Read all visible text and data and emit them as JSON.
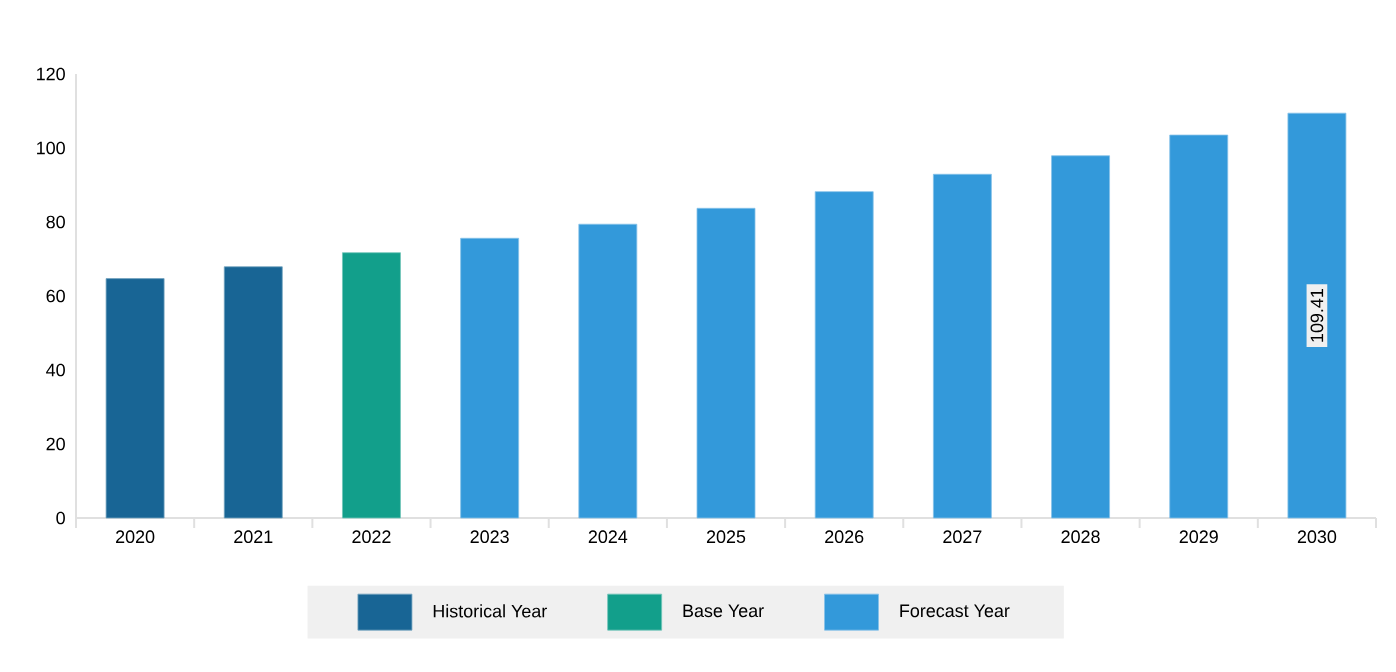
{
  "chart_data": {
    "type": "bar",
    "categories": [
      "2020",
      "2021",
      "2022",
      "2023",
      "2024",
      "2025",
      "2026",
      "2027",
      "2028",
      "2029",
      "2030"
    ],
    "series": [
      {
        "name": "Historical Year",
        "color": "#186595",
        "values": [
          64.7,
          67.9,
          null,
          null,
          null,
          null,
          null,
          null,
          null,
          null,
          null
        ]
      },
      {
        "name": "Base Year",
        "color": "#129f8b",
        "values": [
          null,
          null,
          71.7,
          null,
          null,
          null,
          null,
          null,
          null,
          null,
          null
        ]
      },
      {
        "name": "Forecast Year",
        "color": "#3399da",
        "values": [
          null,
          null,
          null,
          75.6,
          79.4,
          83.7,
          88.2,
          92.9,
          97.9,
          103.5,
          109.41
        ],
        "value_labels": [
          null,
          null,
          null,
          null,
          null,
          null,
          null,
          null,
          null,
          null,
          "109.41"
        ]
      }
    ],
    "ylim": [
      0,
      120
    ],
    "yticks": [
      0,
      20,
      40,
      60,
      80,
      100,
      120
    ],
    "legend": "bottom"
  }
}
